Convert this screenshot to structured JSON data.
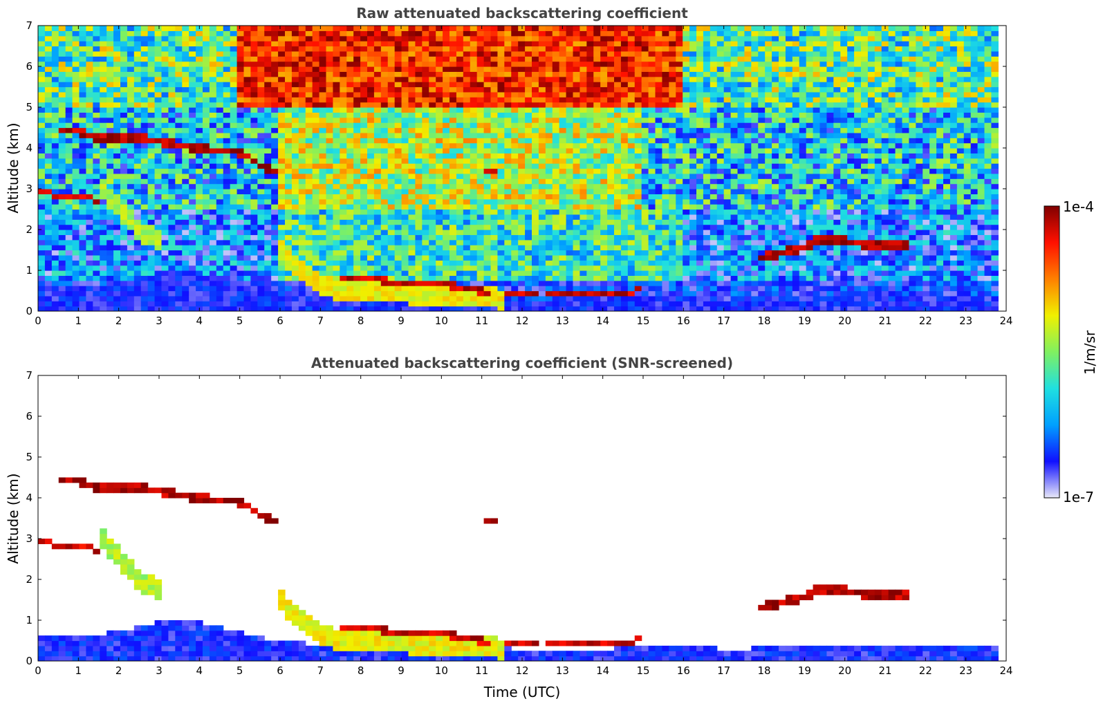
{
  "chart_data": [
    {
      "type": "heatmap",
      "title": "Raw attenuated backscattering coefficient",
      "xlabel": "",
      "ylabel": "Altitude (km)",
      "xlim": [
        0,
        24
      ],
      "ylim": [
        0,
        7
      ],
      "xticks": [
        "0",
        "1",
        "2",
        "3",
        "4",
        "5",
        "6",
        "7",
        "8",
        "9",
        "10",
        "11",
        "12",
        "13",
        "14",
        "15",
        "16",
        "17",
        "18",
        "19",
        "20",
        "21",
        "22",
        "23",
        "24"
      ],
      "yticks": [
        "0",
        "1",
        "2",
        "3",
        "4",
        "5",
        "6",
        "7"
      ],
      "data_extent_hours": 23.8,
      "colorscale": "jet (log)",
      "noise_top_km": 7,
      "background": [
        {
          "alt": [
            5.0,
            7.0
          ],
          "t": [
            0,
            23.8
          ],
          "hue": 0.45,
          "var": 0.25
        },
        {
          "alt": [
            5.0,
            7.0
          ],
          "t": [
            5.0,
            16.0
          ],
          "hue": 0.85,
          "var": 0.15
        },
        {
          "alt": [
            2.5,
            5.0
          ],
          "t": [
            0,
            23.8
          ],
          "hue": 0.33,
          "var": 0.25
        },
        {
          "alt": [
            2.5,
            5.0
          ],
          "t": [
            6.0,
            15.0
          ],
          "hue": 0.55,
          "var": 0.2
        },
        {
          "alt": [
            0.8,
            2.5
          ],
          "t": [
            0,
            23.8
          ],
          "hue": 0.22,
          "var": 0.2
        },
        {
          "alt": [
            0.8,
            2.5
          ],
          "t": [
            6.0,
            16.0
          ],
          "hue": 0.4,
          "var": 0.2
        },
        {
          "alt": [
            0.0,
            0.8
          ],
          "t": [
            0,
            23.8
          ],
          "hue": 0.15,
          "var": 0.1
        }
      ],
      "layers": [
        {
          "name": "boundary-layer",
          "points": [
            [
              0,
              0.65
            ],
            [
              1,
              0.65
            ],
            [
              2,
              0.7
            ],
            [
              3,
              0.95
            ],
            [
              4,
              0.95
            ],
            [
              5,
              0.7
            ],
            [
              6,
              0.5
            ],
            [
              7,
              0.4
            ],
            [
              8,
              0.4
            ],
            [
              10,
              0.4
            ],
            [
              12,
              0.3
            ],
            [
              14,
              0.3
            ],
            [
              16,
              0.4
            ],
            [
              17,
              0.3
            ],
            [
              20,
              0.35
            ],
            [
              23.8,
              0.4
            ]
          ],
          "thickness": 0.6,
          "value": 0.13
        },
        {
          "name": "aerosol-plume",
          "points": [
            [
              6.0,
              1.5
            ],
            [
              6.5,
              1.0
            ],
            [
              7.0,
              0.6
            ],
            [
              8.0,
              0.5
            ],
            [
              10.0,
              0.4
            ],
            [
              11.5,
              0.3
            ]
          ],
          "thickness": 0.5,
          "value": 0.62
        },
        {
          "name": "cirrus-band",
          "points": [
            [
              0.5,
              4.45
            ],
            [
              1.0,
              4.4
            ],
            [
              1.5,
              4.25
            ],
            [
              2.5,
              4.25
            ],
            [
              3.0,
              4.15
            ],
            [
              4.0,
              4.0
            ],
            [
              5.0,
              3.9
            ],
            [
              5.5,
              3.6
            ],
            [
              6.0,
              3.35
            ]
          ],
          "thickness": 0.18,
          "value": 0.95
        },
        {
          "name": "low-cloud-west",
          "points": [
            [
              0,
              3.0
            ],
            [
              0.5,
              2.8
            ],
            [
              1.0,
              2.85
            ],
            [
              1.5,
              2.7
            ]
          ],
          "thickness": 0.15,
          "value": 0.92
        },
        {
          "name": "falling-streaks",
          "points": [
            [
              1.5,
              3.2
            ],
            [
              2.0,
              2.5
            ],
            [
              2.5,
              2.0
            ],
            [
              3.0,
              1.7
            ]
          ],
          "thickness": 0.5,
          "value": 0.55
        },
        {
          "name": "cloud-base-1",
          "points": [
            [
              7.5,
              0.85
            ],
            [
              8.5,
              0.75
            ],
            [
              9.5,
              0.7
            ],
            [
              10.5,
              0.6
            ],
            [
              11.2,
              0.45
            ]
          ],
          "thickness": 0.14,
          "value": 0.93
        },
        {
          "name": "cloud-base-2",
          "points": [
            [
              11.5,
              0.45
            ],
            [
              12.5,
              0.5
            ],
            [
              13.5,
              0.4
            ],
            [
              14.5,
              0.45
            ],
            [
              15.0,
              0.55
            ]
          ],
          "thickness": 0.12,
          "value": 0.93
        },
        {
          "name": "cloud-17-22",
          "points": [
            [
              17.8,
              1.3
            ],
            [
              18.5,
              1.45
            ],
            [
              19.0,
              1.6
            ],
            [
              19.5,
              1.8
            ],
            [
              20.5,
              1.65
            ],
            [
              21.6,
              1.65
            ]
          ],
          "thickness": 0.2,
          "value": 0.95
        },
        {
          "name": "cloud-11",
          "points": [
            [
              11.0,
              3.4
            ],
            [
              11.4,
              3.45
            ]
          ],
          "thickness": 0.12,
          "value": 0.95
        }
      ]
    },
    {
      "type": "heatmap",
      "title": "Attenuated backscattering coefficient (SNR-screened)",
      "xlabel": "Time (UTC)",
      "ylabel": "Altitude (km)",
      "xlim": [
        0,
        24
      ],
      "ylim": [
        0,
        7
      ],
      "xticks": [
        "0",
        "1",
        "2",
        "3",
        "4",
        "5",
        "6",
        "7",
        "8",
        "9",
        "10",
        "11",
        "12",
        "13",
        "14",
        "15",
        "16",
        "17",
        "18",
        "19",
        "20",
        "21",
        "22",
        "23",
        "24"
      ],
      "yticks": [
        "0",
        "1",
        "2",
        "3",
        "4",
        "5",
        "6",
        "7"
      ],
      "data_extent_hours": 23.8,
      "colorscale": "jet (log)",
      "screened": true
    }
  ],
  "colorbar": {
    "label": "1/m/sr",
    "max_label": "1e-4",
    "min_label": "1e-7",
    "colors": [
      "#e8e8f8",
      "#1010ff",
      "#00a0ff",
      "#20e0e0",
      "#80f060",
      "#f0f000",
      "#ff8000",
      "#ff1000",
      "#800000"
    ]
  }
}
